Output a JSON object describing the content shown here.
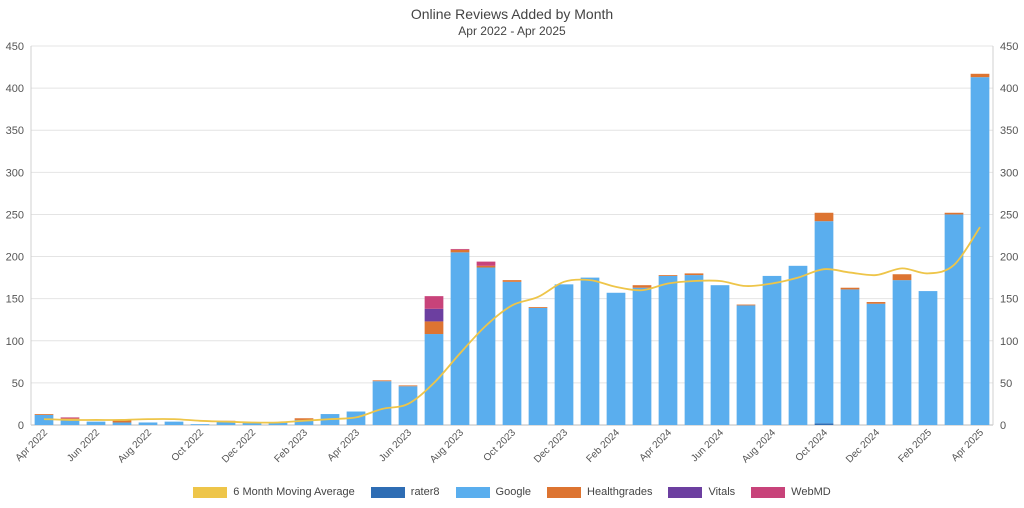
{
  "chart_data": {
    "type": "bar",
    "stacked": true,
    "title": "Online Reviews Added by Month",
    "subtitle": "Apr 2022 - Apr 2025",
    "xlabel": "",
    "ylabel": "",
    "ylim": [
      0,
      450
    ],
    "yticks": [
      0,
      50,
      100,
      150,
      200,
      250,
      300,
      350,
      400,
      450
    ],
    "grid": true,
    "legend_position": "bottom",
    "categories": [
      "Apr 2022",
      "May 2022",
      "Jun 2022",
      "Jul 2022",
      "Aug 2022",
      "Sep 2022",
      "Oct 2022",
      "Nov 2022",
      "Dec 2022",
      "Jan 2023",
      "Feb 2023",
      "Mar 2023",
      "Apr 2023",
      "May 2023",
      "Jun 2023",
      "Jul 2023",
      "Aug 2023",
      "Sep 2023",
      "Oct 2023",
      "Nov 2023",
      "Dec 2023",
      "Jan 2024",
      "Feb 2024",
      "Mar 2024",
      "Apr 2024",
      "May 2024",
      "Jun 2024",
      "Jul 2024",
      "Aug 2024",
      "Sep 2024",
      "Oct 2024",
      "Nov 2024",
      "Dec 2024",
      "Jan 2025",
      "Feb 2025",
      "Mar 2025",
      "Apr 2025"
    ],
    "xtick_labels": [
      "Apr 2022",
      "",
      "Jun 2022",
      "",
      "Aug 2022",
      "",
      "Oct 2022",
      "",
      "Dec 2022",
      "",
      "Feb 2023",
      "",
      "Apr 2023",
      "",
      "Jun 2023",
      "",
      "Aug 2023",
      "",
      "Oct 2023",
      "",
      "Dec 2023",
      "",
      "Feb 2024",
      "",
      "Apr 2024",
      "",
      "Jun 2024",
      "",
      "Aug 2024",
      "",
      "Oct 2024",
      "",
      "Dec 2024",
      "",
      "Feb 2025",
      "",
      "Apr 2025"
    ],
    "series": [
      {
        "name": "rater8",
        "color": "#2e6db4",
        "values": [
          0,
          0,
          0,
          0,
          0,
          0,
          0,
          0,
          0,
          0,
          0,
          0,
          0,
          0,
          0,
          0,
          0,
          0,
          0,
          0,
          0,
          0,
          0,
          0,
          0,
          0,
          0,
          0,
          0,
          0,
          2,
          0,
          0,
          0,
          0,
          0,
          0
        ]
      },
      {
        "name": "Google",
        "color": "#5aaeee",
        "values": [
          12,
          7,
          4,
          3,
          3,
          4,
          1,
          4,
          3,
          3,
          6,
          13,
          16,
          52,
          46,
          108,
          205,
          187,
          170,
          139,
          167,
          175,
          157,
          163,
          177,
          178,
          166,
          142,
          177,
          189,
          240,
          161,
          144,
          172,
          159,
          250,
          413
        ]
      },
      {
        "name": "Healthgrades",
        "color": "#dd7431",
        "values": [
          1,
          1,
          0,
          3,
          0,
          0,
          0,
          1,
          0,
          0,
          2,
          0,
          0,
          1,
          1,
          15,
          3,
          2,
          2,
          1,
          0,
          0,
          0,
          3,
          1,
          2,
          0,
          1,
          0,
          0,
          10,
          2,
          2,
          7,
          0,
          2,
          4
        ]
      },
      {
        "name": "Vitals",
        "color": "#6c3fa0",
        "values": [
          0,
          0,
          0,
          0,
          0,
          0,
          0,
          0,
          0,
          0,
          0,
          0,
          0,
          0,
          0,
          15,
          0,
          0,
          0,
          0,
          0,
          0,
          0,
          0,
          0,
          0,
          0,
          0,
          0,
          0,
          0,
          0,
          0,
          0,
          0,
          0,
          0
        ]
      },
      {
        "name": "WebMD",
        "color": "#c8437a",
        "values": [
          0,
          1,
          0,
          0,
          0,
          0,
          0,
          0,
          0,
          0,
          0,
          0,
          0,
          0,
          0,
          15,
          1,
          5,
          0,
          0,
          0,
          0,
          0,
          0,
          0,
          0,
          0,
          0,
          0,
          0,
          0,
          0,
          0,
          0,
          0,
          0,
          0
        ]
      }
    ],
    "line_series": {
      "name": "6 Month Moving Average",
      "color": "#eec549",
      "values": [
        7,
        6,
        6,
        6,
        7,
        7,
        5,
        4,
        3,
        3,
        5,
        7,
        9,
        19,
        25,
        50,
        85,
        118,
        142,
        152,
        170,
        172,
        164,
        160,
        168,
        171,
        171,
        165,
        168,
        175,
        185,
        181,
        178,
        186,
        180,
        190,
        235
      ]
    }
  }
}
